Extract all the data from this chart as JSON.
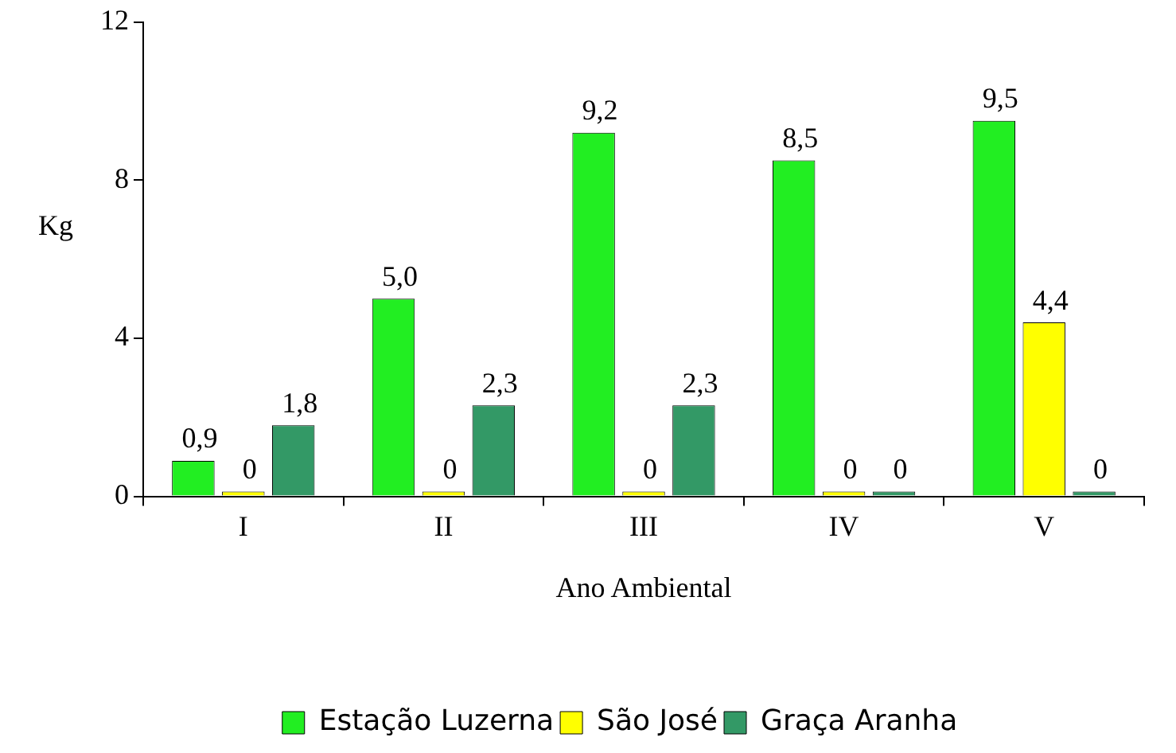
{
  "chart_data": {
    "type": "bar",
    "xlabel": "Ano Ambiental",
    "ylabel": "Kg",
    "categories": [
      "I",
      "II",
      "III",
      "IV",
      "V"
    ],
    "series": [
      {
        "name": "Estação Luzerna",
        "color": "#22ee22",
        "values": [
          0.9,
          5.0,
          9.2,
          8.5,
          9.5
        ],
        "value_labels": [
          "0,9",
          "5,0",
          "9,2",
          "8,5",
          "9,5"
        ]
      },
      {
        "name": "São José",
        "color": "#ffff00",
        "values": [
          0,
          0,
          0,
          0,
          4.4
        ],
        "value_labels": [
          "0",
          "0",
          "0",
          "0",
          "4,4"
        ]
      },
      {
        "name": "Graça Aranha",
        "color": "#339966",
        "values": [
          1.8,
          2.3,
          2.3,
          0,
          0
        ],
        "value_labels": [
          "1,8",
          "2,3",
          "2,3",
          "0",
          "0"
        ]
      }
    ],
    "ylim": [
      0,
      12
    ],
    "yticks": [
      0,
      4,
      8,
      12
    ],
    "grid": false,
    "legend": "bottom"
  }
}
